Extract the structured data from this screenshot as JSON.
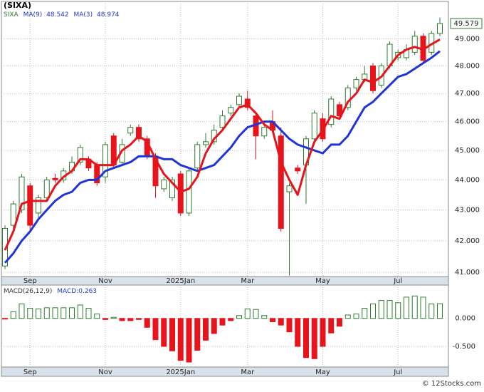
{
  "chart_data": [
    {
      "type": "candlestick",
      "title": "(SIXA)",
      "symbol": "SIXA",
      "log_scale": true,
      "grid": true,
      "up_color": "#2e7d2e",
      "down_color": "#e8141c",
      "categories": [
        null,
        null,
        null,
        "Sep",
        null,
        null,
        null,
        null,
        null,
        null,
        null,
        null,
        "Nov",
        null,
        null,
        null,
        null,
        null,
        null,
        null,
        null,
        "2025Jan",
        null,
        null,
        null,
        null,
        null,
        null,
        null,
        "Mar",
        null,
        null,
        null,
        null,
        null,
        null,
        null,
        null,
        "May",
        null,
        null,
        null,
        null,
        null,
        null,
        null,
        null,
        "Jul",
        null,
        null,
        null,
        null,
        null
      ],
      "open": [
        41.2,
        42.5,
        43.0,
        43.8,
        42.9,
        43.4,
        44.05,
        44.0,
        44.3,
        44.6,
        44.7,
        44.5,
        44.1,
        45.5,
        44.6,
        45.6,
        45.8,
        45.4,
        44.8,
        43.7,
        43.4,
        44.2,
        42.9,
        44.4,
        45.2,
        45.3,
        45.8,
        46.3,
        46.6,
        46.8,
        46.2,
        45.5,
        46.0,
        45.5,
        43.6,
        44.4,
        44.5,
        45.4,
        46.1,
        45.9,
        46.6,
        46.5,
        47.2,
        47.5,
        48.0,
        47.3,
        48.0,
        48.3,
        48.3,
        48.5,
        49.1,
        48.5,
        49.2
      ],
      "high": [
        42.5,
        43.3,
        44.2,
        43.9,
        43.5,
        44.1,
        44.2,
        44.4,
        44.8,
        45.2,
        44.8,
        44.6,
        45.3,
        45.6,
        45.4,
        45.9,
        45.9,
        45.5,
        44.9,
        44.1,
        44.1,
        44.3,
        44.4,
        45.3,
        45.6,
        45.9,
        46.4,
        46.6,
        47.0,
        47.1,
        46.3,
        45.9,
        46.4,
        45.8,
        43.9,
        44.5,
        45.5,
        46.4,
        46.3,
        46.9,
        46.7,
        47.3,
        47.6,
        48.0,
        48.1,
        48.1,
        48.9,
        48.6,
        48.8,
        49.3,
        49.2,
        49.3,
        49.8
      ],
      "low": [
        41.1,
        42.3,
        42.9,
        42.3,
        42.7,
        43.3,
        43.9,
        43.9,
        44.2,
        44.5,
        44.3,
        43.8,
        43.9,
        44.4,
        44.5,
        45.5,
        45.3,
        44.7,
        43.4,
        43.6,
        43.3,
        42.8,
        42.8,
        44.3,
        45.1,
        45.2,
        45.7,
        46.2,
        46.5,
        46.4,
        44.7,
        45.4,
        45.6,
        42.3,
        40.9,
        44.2,
        43.2,
        45.3,
        45.3,
        45.8,
        46.1,
        46.4,
        47.1,
        47.4,
        47.0,
        47.2,
        47.9,
        48.2,
        48.2,
        48.4,
        48.1,
        48.4,
        49.1
      ],
      "close": [
        42.4,
        43.2,
        44.1,
        42.5,
        43.4,
        44.0,
        44.0,
        44.3,
        44.6,
        45.1,
        44.4,
        43.9,
        45.2,
        44.5,
        45.2,
        45.8,
        45.4,
        44.8,
        43.8,
        44.0,
        44.0,
        42.9,
        44.3,
        45.2,
        45.3,
        45.7,
        46.2,
        46.5,
        46.9,
        46.5,
        45.5,
        45.8,
        45.7,
        42.4,
        43.8,
        44.3,
        45.4,
        46.3,
        45.4,
        46.8,
        46.2,
        47.2,
        47.5,
        47.7,
        47.1,
        48.0,
        48.8,
        48.5,
        48.6,
        49.1,
        48.2,
        49.2,
        49.579
      ],
      "series": [
        {
          "name": "MA(9)",
          "color": "#1f35d8",
          "values": [
            41.3,
            41.6,
            42.0,
            42.3,
            42.7,
            43.0,
            43.3,
            43.5,
            43.6,
            43.9,
            44.0,
            44.0,
            44.3,
            44.4,
            44.5,
            44.6,
            44.8,
            44.8,
            44.8,
            44.7,
            44.7,
            44.5,
            44.4,
            44.3,
            44.4,
            44.5,
            44.8,
            45.1,
            45.5,
            45.8,
            45.9,
            46.0,
            46.0,
            45.7,
            45.4,
            45.2,
            45.1,
            45.0,
            44.9,
            45.2,
            45.2,
            45.5,
            46.0,
            46.5,
            46.7,
            47.0,
            47.3,
            47.6,
            47.7,
            47.9,
            48.1,
            48.3,
            48.542
          ]
        },
        {
          "name": "MA(3)",
          "color": "#e8141c",
          "values": [
            41.7,
            42.3,
            43.2,
            43.3,
            43.3,
            43.3,
            43.8,
            44.1,
            44.3,
            44.7,
            44.7,
            44.5,
            44.5,
            44.5,
            45.0,
            45.2,
            45.5,
            45.3,
            44.7,
            44.2,
            43.9,
            43.6,
            43.7,
            44.1,
            44.9,
            45.4,
            45.7,
            46.1,
            46.5,
            46.6,
            46.3,
            45.9,
            45.7,
            44.6,
            44.0,
            43.5,
            44.5,
            45.3,
            45.7,
            46.2,
            46.1,
            46.7,
            47.0,
            47.5,
            47.4,
            47.6,
            48.0,
            48.4,
            48.6,
            48.7,
            48.6,
            48.8,
            48.974
          ]
        }
      ],
      "ylim": [
        40.87,
        50.42
      ],
      "yticks": [
        {
          "value": 41,
          "label": "41.000"
        },
        {
          "value": 42,
          "label": "42.000"
        },
        {
          "value": 43,
          "label": "43.000"
        },
        {
          "value": 44,
          "label": "44.000"
        },
        {
          "value": 45,
          "label": "45.000"
        },
        {
          "value": 46,
          "label": "46.000"
        },
        {
          "value": 47,
          "label": "47.000"
        },
        {
          "value": 48,
          "label": "48.000"
        },
        {
          "value": 49,
          "label": "49.000"
        }
      ]
    },
    {
      "type": "bar",
      "title": "MACD(26,12,9)",
      "name": "MACD:",
      "positive_color": "#2e7d2e",
      "negative_color": "#e8141c",
      "grid": true,
      "values": [
        -0.01,
        0.12,
        0.26,
        0.18,
        0.17,
        0.19,
        0.19,
        0.19,
        0.19,
        0.24,
        0.18,
        0.08,
        -0.02,
        0.02,
        -0.04,
        -0.04,
        -0.02,
        -0.16,
        -0.38,
        -0.5,
        -0.58,
        -0.75,
        -0.78,
        -0.57,
        -0.39,
        -0.27,
        -0.12,
        -0.04,
        0.05,
        0.17,
        0.16,
        0.05,
        -0.06,
        -0.12,
        -0.24,
        -0.5,
        -0.7,
        -0.72,
        -0.5,
        -0.26,
        -0.14,
        0.06,
        0.08,
        0.18,
        0.26,
        0.32,
        0.32,
        0.28,
        0.38,
        0.4,
        0.38,
        0.26,
        0.263
      ],
      "ylim": [
        -0.869,
        0.595
      ],
      "yticks": [
        {
          "value": -0.5,
          "label": "-0.500"
        },
        {
          "value": 0,
          "label": "0.000"
        }
      ]
    }
  ],
  "footer": "© 12Stocks.com"
}
